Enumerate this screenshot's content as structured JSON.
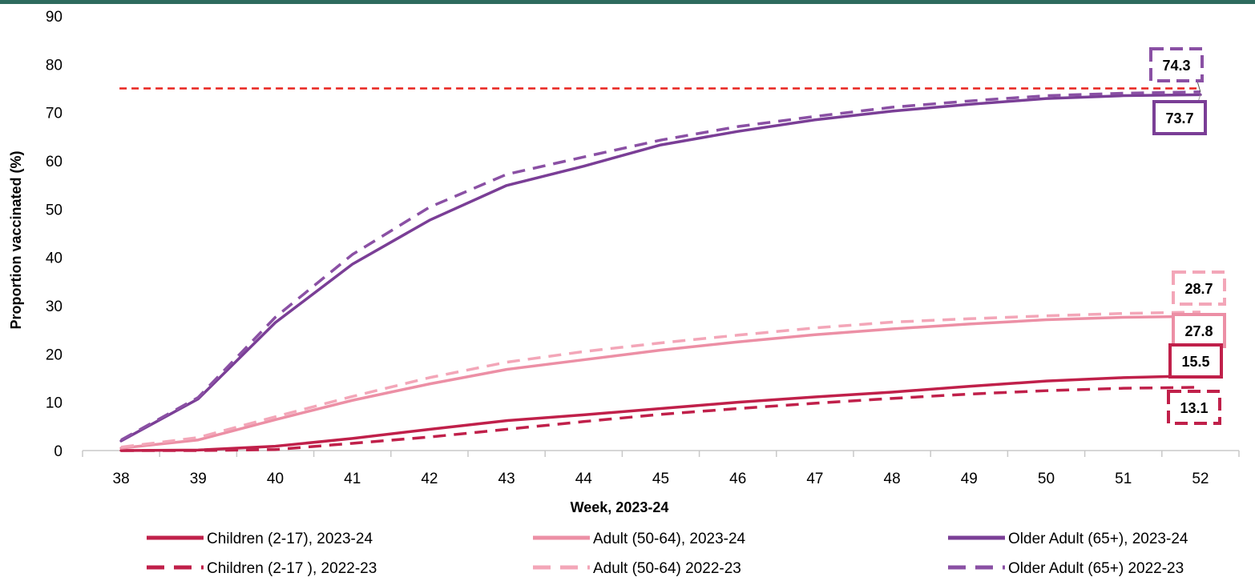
{
  "chart_data": {
    "type": "line",
    "xlabel": "Week, 2023-24",
    "ylabel": "Proportion  vaccinated (%)",
    "categories": [
      "38",
      "39",
      "40",
      "41",
      "42",
      "43",
      "44",
      "45",
      "46",
      "47",
      "48",
      "49",
      "50",
      "51",
      "52"
    ],
    "y_ticks": [
      "0",
      "10",
      "20",
      "30",
      "40",
      "50",
      "60",
      "70",
      "80",
      "90"
    ],
    "ylim": [
      0,
      90
    ],
    "target_line": {
      "value": 75,
      "color": "#e8231e",
      "style": "dashed"
    },
    "legend_position": "bottom",
    "series": [
      {
        "name": "Children (2-17), 2023-24",
        "color": "#c0204a",
        "dashed": false,
        "values": [
          0,
          0.1,
          0.9,
          2.5,
          4.4,
          6.2,
          7.4,
          8.7,
          10.0,
          11.1,
          12.1,
          13.3,
          14.4,
          15.1,
          15.5
        ]
      },
      {
        "name": "Children (2-17 ), 2022-23",
        "color": "#c0204a",
        "dashed": true,
        "values": [
          0,
          0,
          0.2,
          1.5,
          2.8,
          4.4,
          6.0,
          7.5,
          8.7,
          9.8,
          10.8,
          11.7,
          12.4,
          12.9,
          13.1
        ]
      },
      {
        "name": "Adult (50-64), 2023-24",
        "color": "#ec8fa5",
        "dashed": false,
        "values": [
          0.5,
          2.2,
          6.4,
          10.4,
          13.8,
          16.8,
          18.8,
          20.8,
          22.5,
          24.0,
          25.2,
          26.2,
          27.1,
          27.6,
          27.8
        ]
      },
      {
        "name": "Adult (50-64) 2022-23",
        "color": "#f3a6b8",
        "dashed": true,
        "values": [
          0.7,
          2.7,
          7.0,
          11.2,
          15.1,
          18.3,
          20.5,
          22.3,
          23.9,
          25.4,
          26.6,
          27.3,
          27.9,
          28.4,
          28.7
        ]
      },
      {
        "name": "Older Adult (65+), 2023-24",
        "color": "#7a3e96",
        "dashed": false,
        "values": [
          2.0,
          10.7,
          26.5,
          38.6,
          47.7,
          54.9,
          58.9,
          63.3,
          66.1,
          68.5,
          70.3,
          71.7,
          72.9,
          73.5,
          73.7
        ]
      },
      {
        "name": "Older Adult (65+) 2022-23",
        "color": "#8a50a4",
        "dashed": true,
        "values": [
          2.2,
          11.0,
          27.6,
          40.6,
          50.4,
          57.2,
          60.8,
          64.3,
          67.1,
          69.2,
          71.1,
          72.4,
          73.5,
          74.0,
          74.3
        ]
      }
    ],
    "callouts": [
      {
        "label": "74.3",
        "series": 5,
        "style": "dashed",
        "color": "#8a50a4"
      },
      {
        "label": "73.7",
        "series": 4,
        "style": "solid",
        "color": "#7a3e96"
      },
      {
        "label": "28.7",
        "series": 3,
        "style": "dashed",
        "color": "#f3a6b8"
      },
      {
        "label": "27.8",
        "series": 2,
        "style": "solid",
        "color": "#ec8fa5"
      },
      {
        "label": "15.5",
        "series": 0,
        "style": "solid",
        "color": "#c0204a"
      },
      {
        "label": "13.1",
        "series": 1,
        "style": "dashed",
        "color": "#c0204a"
      }
    ]
  }
}
